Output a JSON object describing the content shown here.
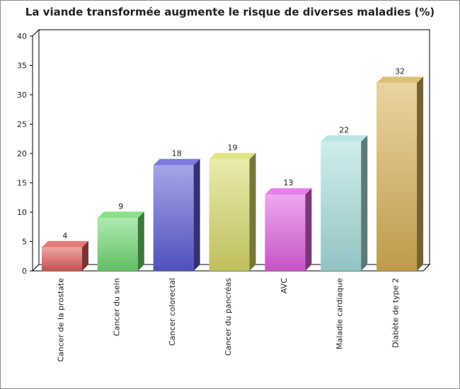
{
  "chart_data": {
    "type": "bar",
    "title": "La viande transformée augmente le risque de diverses maladies (%)",
    "xlabel": "",
    "ylabel": "",
    "ylim": [
      0,
      40
    ],
    "yticks": [
      0,
      5,
      10,
      15,
      20,
      25,
      30,
      35,
      40
    ],
    "grid": false,
    "legend": "none",
    "categories": [
      "Cancer de la prostate",
      "Cancer du sein",
      "Cancer colorectal",
      "Cancer du pancréas",
      "AVC",
      "Maladie cardiaque",
      "Diabète de type 2"
    ],
    "values": [
      4,
      9,
      18,
      19,
      13,
      22,
      32
    ],
    "colors": [
      "#e05a5a",
      "#6fd86f",
      "#5b5bd6",
      "#d9d96a",
      "#e060e0",
      "#a8dede",
      "#d8b055"
    ]
  }
}
